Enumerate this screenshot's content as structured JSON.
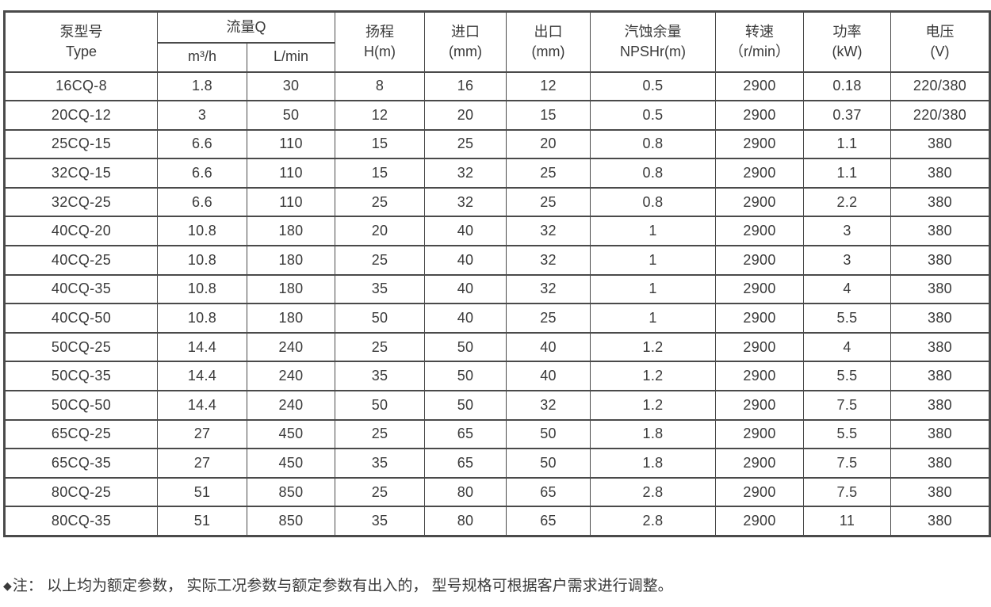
{
  "theme": {
    "background": "#ffffff",
    "text": "#3a3a3a",
    "line": "#4a4a4a"
  },
  "table": {
    "headers": {
      "type": "泵型号\nType",
      "flow": "流量Q",
      "flow_m3h": "m³/h",
      "flow_lmin": "L/min",
      "head": "扬程\nH(m)",
      "inlet": "进口\n(mm)",
      "outlet": "出口\n(mm)",
      "npsh": "汽蚀余量\nNPSHr(m)",
      "speed": "转速\n（r/min）",
      "power": "功率\n(kW)",
      "voltage": "电压\n(V)"
    },
    "col_keys": [
      "model",
      "flow-m3h",
      "flow-lmin",
      "head",
      "inlet",
      "outlet",
      "npshr",
      "speed",
      "power",
      "voltage"
    ],
    "rows": [
      [
        "16CQ-8",
        "1.8",
        "30",
        "8",
        "16",
        "12",
        "0.5",
        "2900",
        "0.18",
        "220/380"
      ],
      [
        "20CQ-12",
        "3",
        "50",
        "12",
        "20",
        "15",
        "0.5",
        "2900",
        "0.37",
        "220/380"
      ],
      [
        "25CQ-15",
        "6.6",
        "110",
        "15",
        "25",
        "20",
        "0.8",
        "2900",
        "1.1",
        "380"
      ],
      [
        "32CQ-15",
        "6.6",
        "110",
        "15",
        "32",
        "25",
        "0.8",
        "2900",
        "1.1",
        "380"
      ],
      [
        "32CQ-25",
        "6.6",
        "110",
        "25",
        "32",
        "25",
        "0.8",
        "2900",
        "2.2",
        "380"
      ],
      [
        "40CQ-20",
        "10.8",
        "180",
        "20",
        "40",
        "32",
        "1",
        "2900",
        "3",
        "380"
      ],
      [
        "40CQ-25",
        "10.8",
        "180",
        "25",
        "40",
        "32",
        "1",
        "2900",
        "3",
        "380"
      ],
      [
        "40CQ-35",
        "10.8",
        "180",
        "35",
        "40",
        "32",
        "1",
        "2900",
        "4",
        "380"
      ],
      [
        "40CQ-50",
        "10.8",
        "180",
        "50",
        "40",
        "25",
        "1",
        "2900",
        "5.5",
        "380"
      ],
      [
        "50CQ-25",
        "14.4",
        "240",
        "25",
        "50",
        "40",
        "1.2",
        "2900",
        "4",
        "380"
      ],
      [
        "50CQ-35",
        "14.4",
        "240",
        "35",
        "50",
        "40",
        "1.2",
        "2900",
        "5.5",
        "380"
      ],
      [
        "50CQ-50",
        "14.4",
        "240",
        "50",
        "50",
        "32",
        "1.2",
        "2900",
        "7.5",
        "380"
      ],
      [
        "65CQ-25",
        "27",
        "450",
        "25",
        "65",
        "50",
        "1.8",
        "2900",
        "5.5",
        "380"
      ],
      [
        "65CQ-35",
        "27",
        "450",
        "35",
        "65",
        "50",
        "1.8",
        "2900",
        "7.5",
        "380"
      ],
      [
        "80CQ-25",
        "51",
        "850",
        "25",
        "80",
        "65",
        "2.8",
        "2900",
        "7.5",
        "380"
      ],
      [
        "80CQ-35",
        "51",
        "850",
        "35",
        "80",
        "65",
        "2.8",
        "2900",
        "11",
        "380"
      ]
    ]
  },
  "note": {
    "bullet": "◆",
    "text": "注： 以上均为额定参数， 实际工况参数与额定参数有出入的， 型号规格可根据客户需求进行调整。"
  }
}
